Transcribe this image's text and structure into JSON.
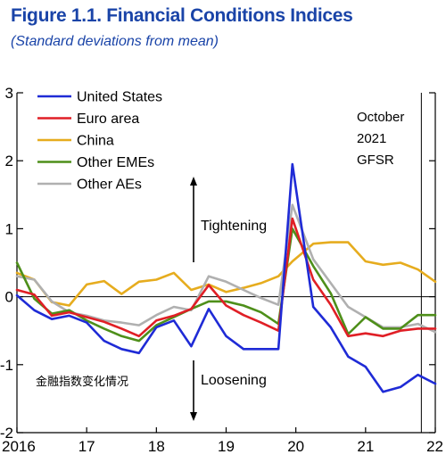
{
  "header": {
    "title": "Figure 1.1.  Financial Conditions Indices",
    "subtitle": "(Standard deviations from mean)"
  },
  "annotations": {
    "tightening": "Tightening",
    "loosening": "Loosening",
    "chinese_note": "金融指数变化情况",
    "vline_label_lines": [
      "October",
      "2021",
      "GFSR"
    ]
  },
  "colors": {
    "united_states": "#1f2bd6",
    "euro_area": "#e01f26",
    "china": "#e6ac1e",
    "other_emes": "#4e8f1a",
    "other_aes": "#b0b0b0"
  },
  "chart_data": {
    "type": "line",
    "title": "Financial Conditions Indices",
    "subtitle": "(Standard deviations from mean)",
    "xlabel": "",
    "ylabel": "",
    "xlim": [
      2016,
      2022
    ],
    "ylim": [
      -2,
      3
    ],
    "x_ticks": [
      2016,
      2017,
      2018,
      2019,
      2020,
      2021,
      2022
    ],
    "x_tick_labels": [
      "2016",
      "17",
      "18",
      "19",
      "20",
      "21",
      "22"
    ],
    "y_ticks": [
      -2,
      -1,
      0,
      1,
      2,
      3
    ],
    "y_tick_labels": [
      "-2",
      "-1",
      "0",
      "1",
      "2",
      "3"
    ],
    "vline_x": 2021.8,
    "legend": "top-left",
    "grid": false,
    "series": [
      {
        "name": "United States",
        "color": "#1f2bd6",
        "x": [
          2016,
          2016.25,
          2016.5,
          2016.75,
          2017,
          2017.25,
          2017.5,
          2017.75,
          2018,
          2018.25,
          2018.5,
          2018.75,
          2019,
          2019.25,
          2019.5,
          2019.75,
          2019.95,
          2020.25,
          2020.5,
          2020.75,
          2021,
          2021.25,
          2021.5,
          2021.75,
          2022
        ],
        "y": [
          0.02,
          -0.2,
          -0.33,
          -0.28,
          -0.38,
          -0.65,
          -0.77,
          -0.83,
          -0.45,
          -0.35,
          -0.73,
          -0.18,
          -0.58,
          -0.77,
          -0.77,
          -0.77,
          1.95,
          -0.15,
          -0.45,
          -0.88,
          -1.03,
          -1.4,
          -1.33,
          -1.15,
          -1.28
        ]
      },
      {
        "name": "Euro area",
        "color": "#e01f26",
        "x": [
          2016,
          2016.25,
          2016.5,
          2016.75,
          2017,
          2017.25,
          2017.5,
          2017.75,
          2018,
          2018.25,
          2018.5,
          2018.75,
          2019,
          2019.25,
          2019.5,
          2019.75,
          2019.95,
          2020.25,
          2020.5,
          2020.75,
          2021,
          2021.25,
          2021.5,
          2021.75,
          2022
        ],
        "y": [
          0.1,
          0.03,
          -0.28,
          -0.23,
          -0.3,
          -0.37,
          -0.47,
          -0.58,
          -0.35,
          -0.28,
          -0.18,
          0.17,
          -0.13,
          -0.27,
          -0.38,
          -0.5,
          1.15,
          0.25,
          -0.12,
          -0.58,
          -0.54,
          -0.58,
          -0.5,
          -0.47,
          -0.47
        ]
      },
      {
        "name": "China",
        "color": "#e6ac1e",
        "x": [
          2016,
          2016.25,
          2016.5,
          2016.75,
          2017,
          2017.25,
          2017.5,
          2017.75,
          2018,
          2018.25,
          2018.5,
          2018.75,
          2019,
          2019.25,
          2019.5,
          2019.75,
          2019.95,
          2020.25,
          2020.5,
          2020.75,
          2021,
          2021.25,
          2021.5,
          2021.75,
          2022
        ],
        "y": [
          0.35,
          0.25,
          -0.08,
          -0.13,
          0.18,
          0.23,
          0.04,
          0.22,
          0.25,
          0.35,
          0.1,
          0.18,
          0.07,
          0.13,
          0.2,
          0.3,
          0.52,
          0.78,
          0.8,
          0.8,
          0.52,
          0.47,
          0.5,
          0.4,
          0.22
        ]
      },
      {
        "name": "Other EMEs",
        "color": "#4e8f1a",
        "x": [
          2016,
          2016.25,
          2016.5,
          2016.75,
          2017,
          2017.25,
          2017.5,
          2017.75,
          2018,
          2018.25,
          2018.5,
          2018.75,
          2019,
          2019.25,
          2019.5,
          2019.75,
          2019.95,
          2020.25,
          2020.5,
          2020.75,
          2021,
          2021.25,
          2021.5,
          2021.75,
          2022
        ],
        "y": [
          0.5,
          -0.03,
          -0.25,
          -0.2,
          -0.35,
          -0.47,
          -0.58,
          -0.65,
          -0.42,
          -0.3,
          -0.18,
          -0.07,
          -0.07,
          -0.13,
          -0.23,
          -0.4,
          1.0,
          0.45,
          0.05,
          -0.55,
          -0.3,
          -0.47,
          -0.47,
          -0.27,
          -0.27
        ]
      },
      {
        "name": "Other AEs",
        "color": "#b0b0b0",
        "x": [
          2016,
          2016.25,
          2016.5,
          2016.75,
          2017,
          2017.25,
          2017.5,
          2017.75,
          2018,
          2018.25,
          2018.5,
          2018.75,
          2019,
          2019.25,
          2019.5,
          2019.75,
          2019.95,
          2020.25,
          2020.5,
          2020.75,
          2021,
          2021.25,
          2021.5,
          2021.75,
          2022
        ],
        "y": [
          0.3,
          0.25,
          -0.07,
          -0.23,
          -0.28,
          -0.35,
          -0.38,
          -0.42,
          -0.27,
          -0.15,
          -0.2,
          0.3,
          0.22,
          0.1,
          -0.02,
          -0.12,
          1.35,
          0.55,
          0.2,
          -0.15,
          -0.3,
          -0.45,
          -0.45,
          -0.4,
          -0.52
        ]
      }
    ]
  }
}
